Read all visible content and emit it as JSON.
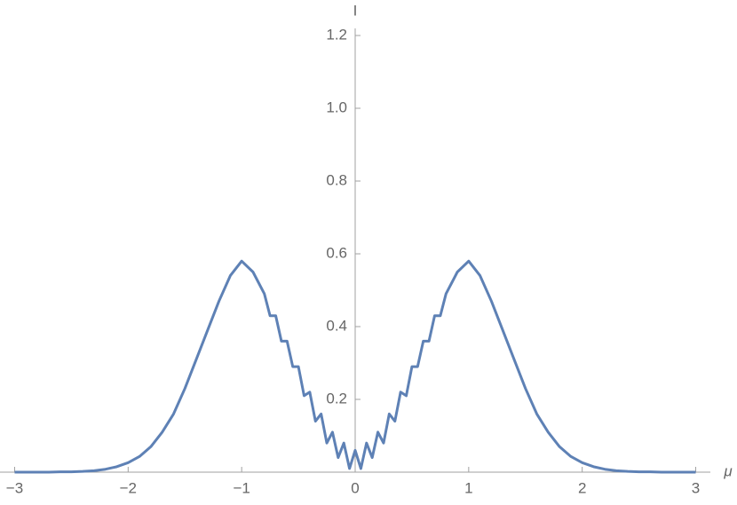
{
  "chart_data": {
    "type": "line",
    "x_label": "μ",
    "y_label": "I",
    "x": [
      -3,
      -2.9,
      -2.8,
      -2.7,
      -2.6,
      -2.5,
      -2.4,
      -2.3,
      -2.2,
      -2.1,
      -2.0,
      -1.9,
      -1.8,
      -1.7,
      -1.6,
      -1.5,
      -1.4,
      -1.3,
      -1.2,
      -1.1,
      -1.0,
      -0.9,
      -0.8,
      -0.75,
      -0.7,
      -0.65,
      -0.6,
      -0.55,
      -0.5,
      -0.45,
      -0.4,
      -0.35,
      -0.3,
      -0.25,
      -0.2,
      -0.15,
      -0.1,
      -0.05,
      0,
      0.05,
      0.1,
      0.15,
      0.2,
      0.25,
      0.3,
      0.35,
      0.4,
      0.45,
      0.5,
      0.55,
      0.6,
      0.65,
      0.7,
      0.75,
      0.8,
      0.9,
      1.0,
      1.1,
      1.2,
      1.3,
      1.4,
      1.5,
      1.6,
      1.7,
      1.8,
      1.9,
      2.0,
      2.1,
      2.2,
      2.3,
      2.4,
      2.5,
      2.6,
      2.7,
      2.8,
      2.9,
      3
    ],
    "values": [
      0,
      0,
      0,
      0,
      0.001,
      0.001,
      0.002,
      0.004,
      0.008,
      0.015,
      0.026,
      0.043,
      0.07,
      0.11,
      0.16,
      0.23,
      0.31,
      0.39,
      0.47,
      0.54,
      0.58,
      0.55,
      0.49,
      0.43,
      0.43,
      0.36,
      0.36,
      0.29,
      0.29,
      0.21,
      0.22,
      0.14,
      0.16,
      0.08,
      0.11,
      0.04,
      0.08,
      0.01,
      0.06,
      0.01,
      0.08,
      0.04,
      0.11,
      0.08,
      0.16,
      0.14,
      0.22,
      0.21,
      0.29,
      0.29,
      0.36,
      0.36,
      0.43,
      0.43,
      0.49,
      0.55,
      0.58,
      0.54,
      0.47,
      0.39,
      0.31,
      0.23,
      0.16,
      0.11,
      0.07,
      0.043,
      0.026,
      0.015,
      0.008,
      0.004,
      0.002,
      0.001,
      0.001,
      0,
      0,
      0,
      0
    ],
    "color": "#5e81b5",
    "xlim": [
      -3.1,
      3.1
    ],
    "ylim": [
      0,
      1.22
    ],
    "xticks": [
      {
        "value": -3,
        "label": "−3"
      },
      {
        "value": -2,
        "label": "−2"
      },
      {
        "value": -1,
        "label": "−1"
      },
      0,
      1,
      2,
      3
    ],
    "yticks": [
      0.2,
      0.4,
      0.6,
      0.8,
      {
        "value": 1,
        "label": "1.0"
      },
      1.2
    ]
  }
}
